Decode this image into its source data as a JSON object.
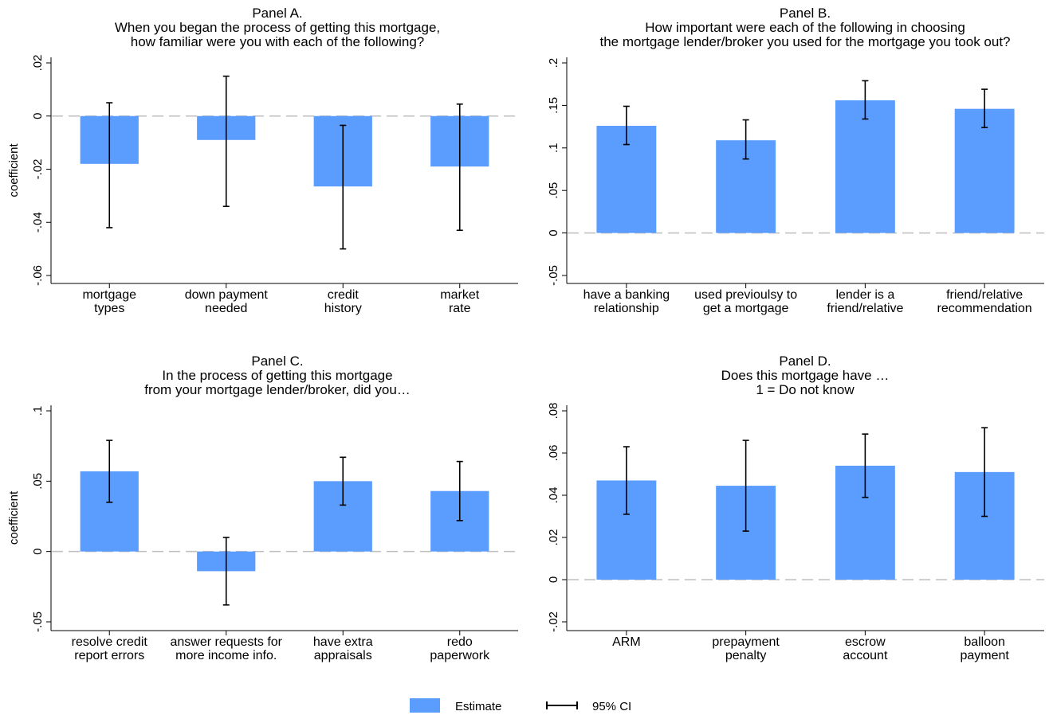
{
  "colors": {
    "bar": "#5b9cff",
    "ci": "#000000",
    "zero_line": "#bfbfbf",
    "axis": "#000000"
  },
  "legend": {
    "estimate_label": "Estimate",
    "ci_label": "95% CI",
    "placement": "bottom-center"
  },
  "chart_data": [
    {
      "type": "bar",
      "title_lines": [
        "Panel A.",
        "When you began the process of getting this mortgage,",
        "how familiar were you with each of the following?"
      ],
      "ylabel": "coefficient",
      "ylim": [
        -0.06,
        0.02
      ],
      "yticks": [
        0.02,
        0,
        -0.02,
        -0.04,
        -0.06
      ],
      "ytick_labels": [
        ".02",
        "0",
        "-.02",
        "-.04",
        "-.06"
      ],
      "categories": [
        [
          "mortgage",
          "types"
        ],
        [
          "down payment",
          "needed"
        ],
        [
          "credit",
          "history"
        ],
        [
          "market",
          "rate"
        ]
      ],
      "values": [
        -0.018,
        -0.009,
        -0.0265,
        -0.019
      ],
      "ci_low": [
        -0.042,
        -0.034,
        -0.05,
        -0.043
      ],
      "ci_high": [
        0.005,
        0.015,
        -0.0035,
        0.0045
      ]
    },
    {
      "type": "bar",
      "title_lines": [
        "Panel B.",
        "How important were each of the following in choosing",
        "the mortgage lender/broker you used for the mortgage you took out?"
      ],
      "ylabel": "",
      "ylim": [
        -0.05,
        0.2
      ],
      "yticks": [
        0.2,
        0.15,
        0.1,
        0.05,
        0,
        -0.05
      ],
      "ytick_labels": [
        ".2",
        ".15",
        ".1",
        ".05",
        "0",
        "-.05"
      ],
      "categories": [
        [
          "have a banking",
          "relationship"
        ],
        [
          "used previoulsy to",
          "get a mortgage"
        ],
        [
          "lender is a",
          "friend/relative"
        ],
        [
          "friend/relative",
          "recommendation"
        ]
      ],
      "values": [
        0.126,
        0.109,
        0.156,
        0.146
      ],
      "ci_low": [
        0.104,
        0.087,
        0.134,
        0.124
      ],
      "ci_high": [
        0.149,
        0.133,
        0.179,
        0.169
      ]
    },
    {
      "type": "bar",
      "title_lines": [
        "Panel C.",
        "In the process of getting this mortgage",
        "from your mortgage lender/broker, did you…"
      ],
      "ylabel": "coefficient",
      "ylim": [
        -0.05,
        0.1
      ],
      "yticks": [
        0.1,
        0.05,
        0,
        -0.05
      ],
      "ytick_labels": [
        ".1",
        ".05",
        "0",
        "-.05"
      ],
      "categories": [
        [
          "resolve credit",
          "report errors"
        ],
        [
          "answer requests for",
          "more income info."
        ],
        [
          "have extra",
          "appraisals"
        ],
        [
          "redo",
          "paperwork"
        ]
      ],
      "values": [
        0.057,
        -0.014,
        0.05,
        0.043
      ],
      "ci_low": [
        0.035,
        -0.038,
        0.033,
        0.022
      ],
      "ci_high": [
        0.079,
        0.01,
        0.067,
        0.064
      ]
    },
    {
      "type": "bar",
      "title_lines": [
        "Panel D.",
        "Does this mortgage have …",
        "1 = Do not know"
      ],
      "ylabel": "",
      "ylim": [
        -0.02,
        0.08
      ],
      "yticks": [
        0.08,
        0.06,
        0.04,
        0.02,
        0,
        -0.02
      ],
      "ytick_labels": [
        ".08",
        ".06",
        ".04",
        ".02",
        "0",
        "-.02"
      ],
      "categories": [
        [
          "ARM"
        ],
        [
          "prepayment",
          "penalty"
        ],
        [
          "escrow",
          "account"
        ],
        [
          "balloon",
          "payment"
        ]
      ],
      "values": [
        0.047,
        0.0445,
        0.054,
        0.051
      ],
      "ci_low": [
        0.031,
        0.023,
        0.039,
        0.03
      ],
      "ci_high": [
        0.063,
        0.066,
        0.069,
        0.072
      ]
    }
  ]
}
